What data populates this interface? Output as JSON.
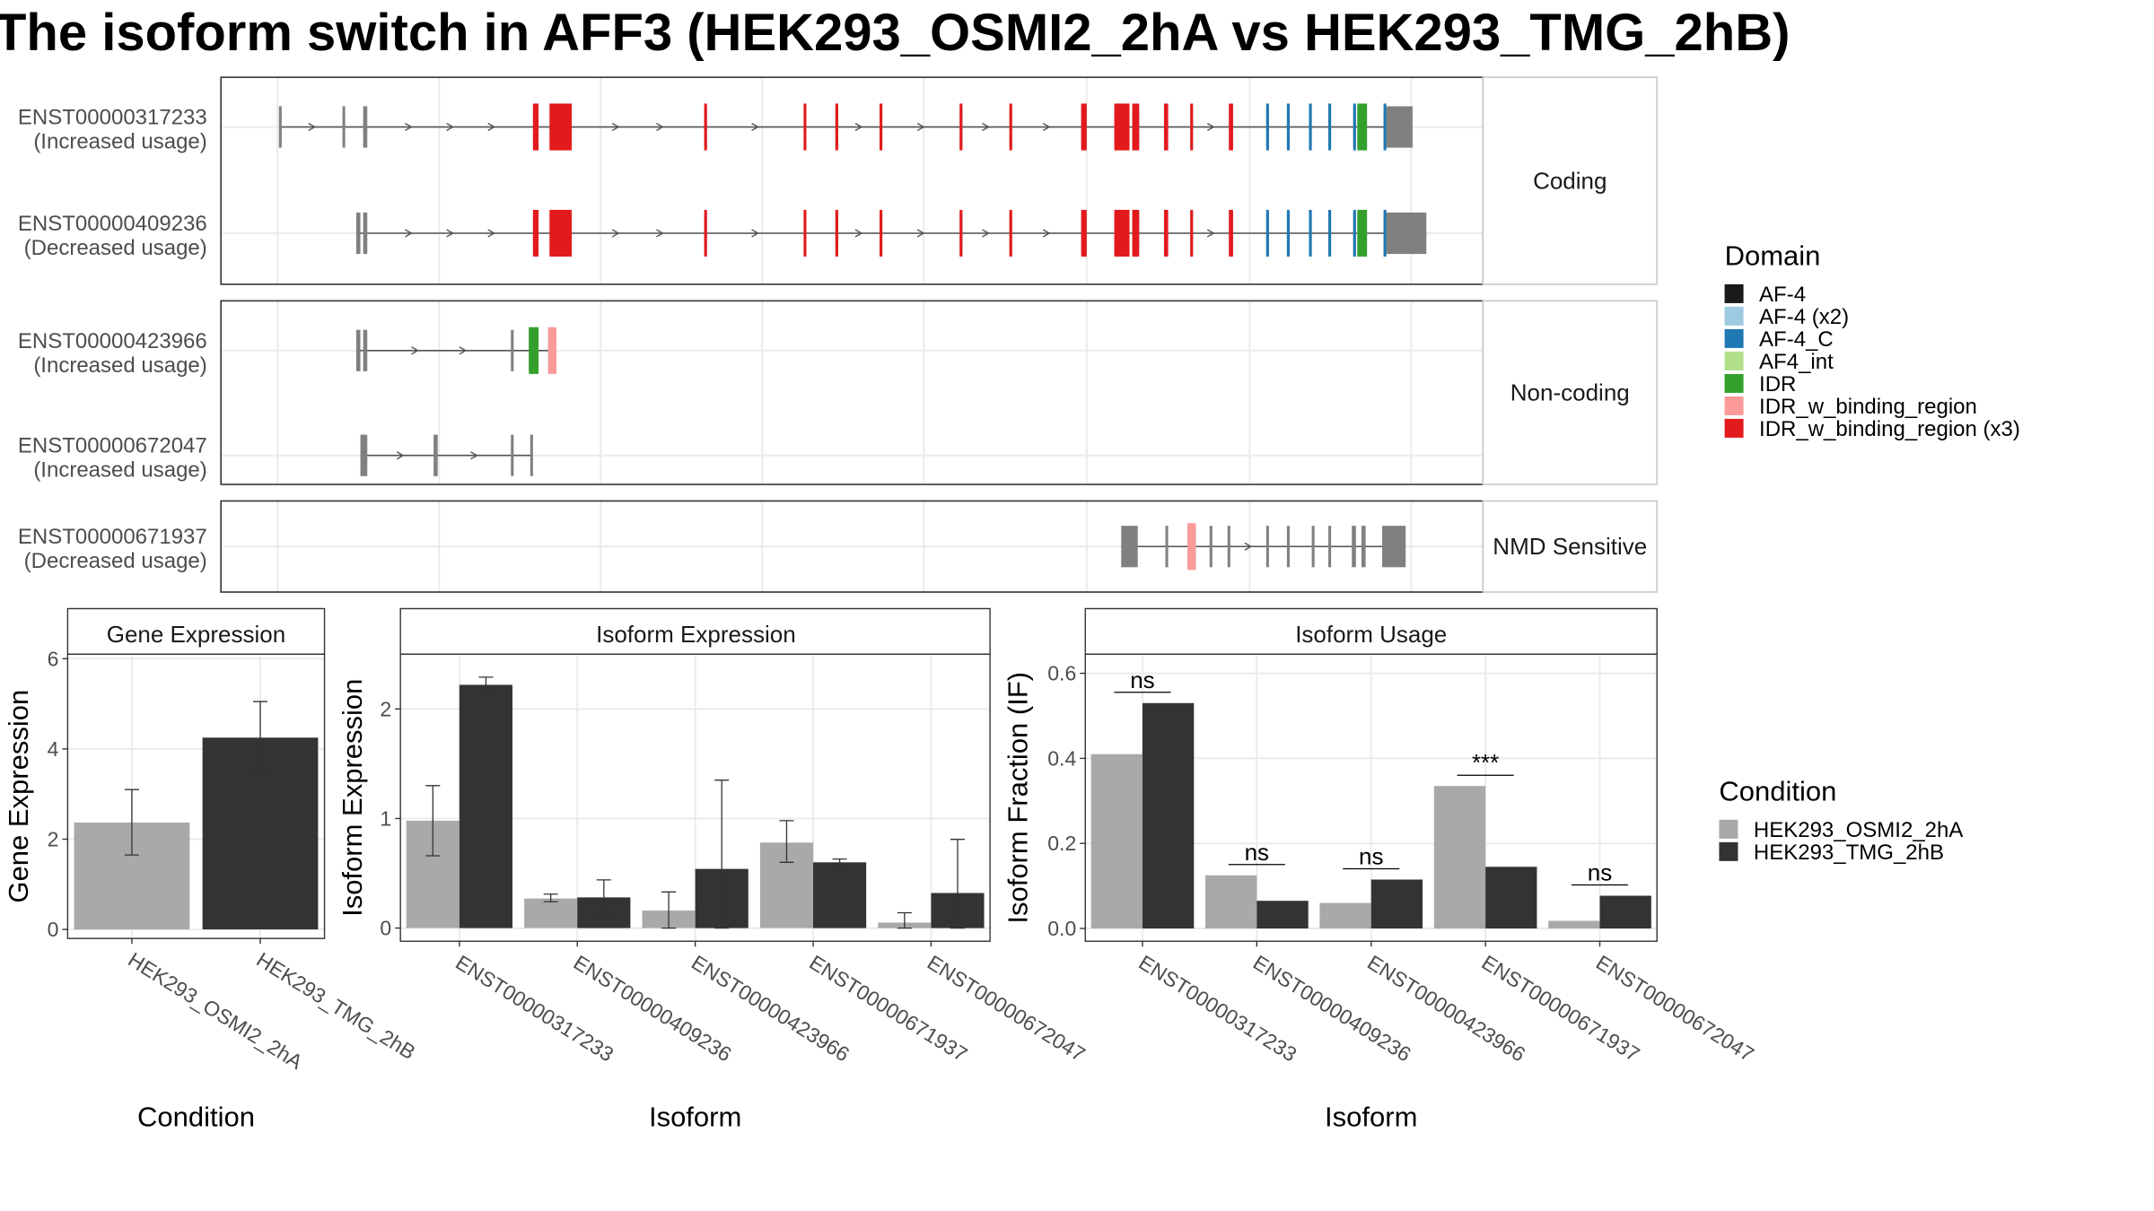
{
  "title": "The isoform switch in AFF3 (HEK293_OSMI2_2hA vs HEK293_TMG_2hB)",
  "colors": {
    "AF-4": "#1a1a1a",
    "AF-4 (x2)": "#9ecae1",
    "AF-4_C": "#1f78b4",
    "AF4_int": "#b2df8a",
    "IDR": "#33a02c",
    "IDR_w_binding_region": "#fb9a99",
    "IDR_w_binding_region (x3)": "#e31a1c",
    "exon": "#808080",
    "intron": "#555555",
    "cond_a": "#a9a9a9",
    "cond_b": "#333333"
  },
  "structure": {
    "groups": [
      {
        "label": "Coding",
        "isoforms": [
          {
            "id": "ENST00000317233",
            "usage": "(Increased usage)",
            "exons": [
              [
                202,
                204
              ],
              [
                248,
                250
              ],
              [
                263,
                266
              ],
              [
                386,
                390
              ],
              [
                398,
                407
              ],
              [
                407,
                414
              ],
              [
                510,
                512
              ],
              [
                582,
                584
              ],
              [
                605,
                607
              ],
              [
                637,
                639
              ],
              [
                695,
                697
              ],
              [
                731,
                733
              ],
              [
                783,
                787
              ],
              [
                807,
                818
              ],
              [
                820,
                825
              ],
              [
                843,
                846
              ],
              [
                862,
                864
              ],
              [
                890,
                893
              ],
              [
                917,
                919
              ],
              [
                932,
                934
              ],
              [
                948,
                950
              ],
              [
                962,
                964
              ],
              [
                980,
                982
              ],
              [
                983,
                990
              ],
              [
                1002,
                1004
              ],
              [
                1004,
                1023
              ]
            ],
            "domains": [
              {
                "s": 386,
                "e": 390,
                "t": "IDR_w_binding_region (x3)"
              },
              {
                "s": 398,
                "e": 414,
                "t": "IDR_w_binding_region (x3)"
              },
              {
                "s": 510,
                "e": 512,
                "t": "IDR_w_binding_region (x3)"
              },
              {
                "s": 582,
                "e": 584,
                "t": "IDR_w_binding_region (x3)"
              },
              {
                "s": 605,
                "e": 607,
                "t": "IDR_w_binding_region (x3)"
              },
              {
                "s": 637,
                "e": 639,
                "t": "IDR_w_binding_region (x3)"
              },
              {
                "s": 695,
                "e": 697,
                "t": "IDR_w_binding_region (x3)"
              },
              {
                "s": 731,
                "e": 733,
                "t": "IDR_w_binding_region (x3)"
              },
              {
                "s": 783,
                "e": 787,
                "t": "IDR_w_binding_region (x3)"
              },
              {
                "s": 807,
                "e": 818,
                "t": "IDR_w_binding_region (x3)"
              },
              {
                "s": 820,
                "e": 825,
                "t": "IDR_w_binding_region (x3)"
              },
              {
                "s": 843,
                "e": 846,
                "t": "IDR_w_binding_region (x3)"
              },
              {
                "s": 862,
                "e": 864,
                "t": "IDR_w_binding_region (x3)"
              },
              {
                "s": 890,
                "e": 893,
                "t": "IDR_w_binding_region (x3)"
              },
              {
                "s": 917,
                "e": 919,
                "t": "AF-4_C"
              },
              {
                "s": 932,
                "e": 934,
                "t": "AF-4_C"
              },
              {
                "s": 948,
                "e": 950,
                "t": "AF-4_C"
              },
              {
                "s": 962,
                "e": 964,
                "t": "AF-4_C"
              },
              {
                "s": 980,
                "e": 982,
                "t": "AF-4_C"
              },
              {
                "s": 983,
                "e": 990,
                "t": "IDR"
              },
              {
                "s": 1002,
                "e": 1004,
                "t": "AF-4_C"
              }
            ]
          },
          {
            "id": "ENST00000409236",
            "usage": "(Decreased usage)",
            "exons": [
              [
                258,
                261
              ],
              [
                263,
                266
              ],
              [
                386,
                390
              ],
              [
                398,
                407
              ],
              [
                407,
                414
              ],
              [
                510,
                512
              ],
              [
                582,
                584
              ],
              [
                605,
                607
              ],
              [
                637,
                639
              ],
              [
                695,
                697
              ],
              [
                731,
                733
              ],
              [
                783,
                787
              ],
              [
                807,
                818
              ],
              [
                820,
                825
              ],
              [
                843,
                846
              ],
              [
                862,
                864
              ],
              [
                890,
                893
              ],
              [
                917,
                919
              ],
              [
                932,
                934
              ],
              [
                948,
                950
              ],
              [
                962,
                964
              ],
              [
                980,
                982
              ],
              [
                983,
                990
              ],
              [
                1002,
                1004
              ],
              [
                1004,
                1033
              ]
            ],
            "domains": [
              {
                "s": 386,
                "e": 390,
                "t": "IDR_w_binding_region (x3)"
              },
              {
                "s": 398,
                "e": 414,
                "t": "IDR_w_binding_region (x3)"
              },
              {
                "s": 510,
                "e": 512,
                "t": "IDR_w_binding_region (x3)"
              },
              {
                "s": 582,
                "e": 584,
                "t": "IDR_w_binding_region (x3)"
              },
              {
                "s": 605,
                "e": 607,
                "t": "IDR_w_binding_region (x3)"
              },
              {
                "s": 637,
                "e": 639,
                "t": "IDR_w_binding_region (x3)"
              },
              {
                "s": 695,
                "e": 697,
                "t": "IDR_w_binding_region (x3)"
              },
              {
                "s": 731,
                "e": 733,
                "t": "IDR_w_binding_region (x3)"
              },
              {
                "s": 783,
                "e": 787,
                "t": "IDR_w_binding_region (x3)"
              },
              {
                "s": 807,
                "e": 818,
                "t": "IDR_w_binding_region (x3)"
              },
              {
                "s": 820,
                "e": 825,
                "t": "IDR_w_binding_region (x3)"
              },
              {
                "s": 843,
                "e": 846,
                "t": "IDR_w_binding_region (x3)"
              },
              {
                "s": 862,
                "e": 864,
                "t": "IDR_w_binding_region (x3)"
              },
              {
                "s": 890,
                "e": 893,
                "t": "IDR_w_binding_region (x3)"
              },
              {
                "s": 917,
                "e": 919,
                "t": "AF-4_C"
              },
              {
                "s": 932,
                "e": 934,
                "t": "AF-4_C"
              },
              {
                "s": 948,
                "e": 950,
                "t": "AF-4_C"
              },
              {
                "s": 962,
                "e": 964,
                "t": "AF-4_C"
              },
              {
                "s": 980,
                "e": 982,
                "t": "AF-4_C"
              },
              {
                "s": 983,
                "e": 990,
                "t": "IDR"
              },
              {
                "s": 1002,
                "e": 1004,
                "t": "AF-4_C"
              }
            ]
          }
        ]
      },
      {
        "label": "Non-coding",
        "isoforms": [
          {
            "id": "ENST00000423966",
            "usage": "(Increased usage)",
            "exons": [
              [
                258,
                261
              ],
              [
                263,
                266
              ],
              [
                370,
                372
              ],
              [
                383,
                390
              ],
              [
                397,
                403
              ]
            ],
            "domains": [
              {
                "s": 383,
                "e": 390,
                "t": "IDR"
              },
              {
                "s": 397,
                "e": 403,
                "t": "IDR_w_binding_region"
              }
            ]
          },
          {
            "id": "ENST00000672047",
            "usage": "(Increased usage)",
            "exons": [
              [
                261,
                266
              ],
              [
                314,
                317
              ],
              [
                370,
                372
              ],
              [
                384,
                386
              ]
            ],
            "domains": []
          }
        ]
      },
      {
        "label": "NMD Sensitive",
        "isoforms": [
          {
            "id": "ENST00000671937",
            "usage": "(Decreased usage)",
            "exons": [
              [
                812,
                824
              ],
              [
                844,
                846
              ],
              [
                860,
                866
              ],
              [
                876,
                878
              ],
              [
                889,
                891
              ],
              [
                917,
                919
              ],
              [
                932,
                934
              ],
              [
                950,
                952
              ],
              [
                962,
                964
              ],
              [
                979,
                982
              ],
              [
                986,
                989
              ],
              [
                1001,
                1018
              ]
            ],
            "domains": [
              {
                "s": 860,
                "e": 866,
                "t": "IDR_w_binding_region"
              }
            ]
          }
        ]
      }
    ]
  },
  "legend_domain": {
    "title": "Domain",
    "items": [
      "AF-4",
      "AF-4 (x2)",
      "AF-4_C",
      "AF4_int",
      "IDR",
      "IDR_w_binding_region",
      "IDR_w_binding_region (x3)"
    ]
  },
  "legend_condition": {
    "title": "Condition",
    "items": [
      "HEK293_OSMI2_2hA",
      "HEK293_TMG_2hB"
    ]
  },
  "chart_data": [
    {
      "type": "bar",
      "title": "Gene Expression",
      "xlabel": "Condition",
      "ylabel": "Gene Expression",
      "ylim": [
        -0.2,
        6.1
      ],
      "yticks": [
        0,
        2,
        4,
        6
      ],
      "categories": [
        "HEK293_OSMI2_2hA",
        "HEK293_TMG_2hB"
      ],
      "values": [
        2.37,
        4.25
      ],
      "err_low": [
        1.65,
        3.45
      ],
      "err_high": [
        3.1,
        5.05
      ],
      "grid": true
    },
    {
      "type": "bar",
      "title": "Isoform Expression",
      "xlabel": "Isoform",
      "ylabel": "Isoform Expression",
      "ylim": [
        -0.12,
        2.5
      ],
      "yticks": [
        0,
        1,
        2
      ],
      "categories": [
        "ENST00000317233",
        "ENST00000409236",
        "ENST00000423966",
        "ENST00000671937",
        "ENST00000672047"
      ],
      "series": [
        {
          "name": "HEK293_OSMI2_2hA",
          "values": [
            0.98,
            0.27,
            0.16,
            0.78,
            0.05
          ],
          "err_low": [
            0.66,
            0.24,
            0.0,
            0.6,
            0.0
          ],
          "err_high": [
            1.3,
            0.31,
            0.33,
            0.98,
            0.14
          ]
        },
        {
          "name": "HEK293_TMG_2hB",
          "values": [
            2.22,
            0.28,
            0.54,
            0.6,
            0.32
          ],
          "err_low": [
            2.15,
            0.12,
            0.0,
            0.58,
            0.0
          ],
          "err_high": [
            2.29,
            0.44,
            1.35,
            0.63,
            0.81
          ]
        }
      ],
      "grid": true
    },
    {
      "type": "bar",
      "title": "Isoform Usage",
      "xlabel": "Isoform",
      "ylabel": "Isoform Fraction (IF)",
      "ylim": [
        -0.03,
        0.645
      ],
      "yticks": [
        0.0,
        0.2,
        0.4,
        0.6
      ],
      "ytick_labels": [
        "0.0",
        "0.2",
        "0.4",
        "0.6"
      ],
      "categories": [
        "ENST00000317233",
        "ENST00000409236",
        "ENST00000423966",
        "ENST00000671937",
        "ENST00000672047"
      ],
      "series": [
        {
          "name": "HEK293_OSMI2_2hA",
          "values": [
            0.41,
            0.125,
            0.06,
            0.335,
            0.018
          ]
        },
        {
          "name": "HEK293_TMG_2hB",
          "values": [
            0.53,
            0.065,
            0.115,
            0.145,
            0.077
          ]
        }
      ],
      "significance": [
        "ns",
        "ns",
        "ns",
        "***",
        "ns"
      ],
      "grid": true
    }
  ]
}
